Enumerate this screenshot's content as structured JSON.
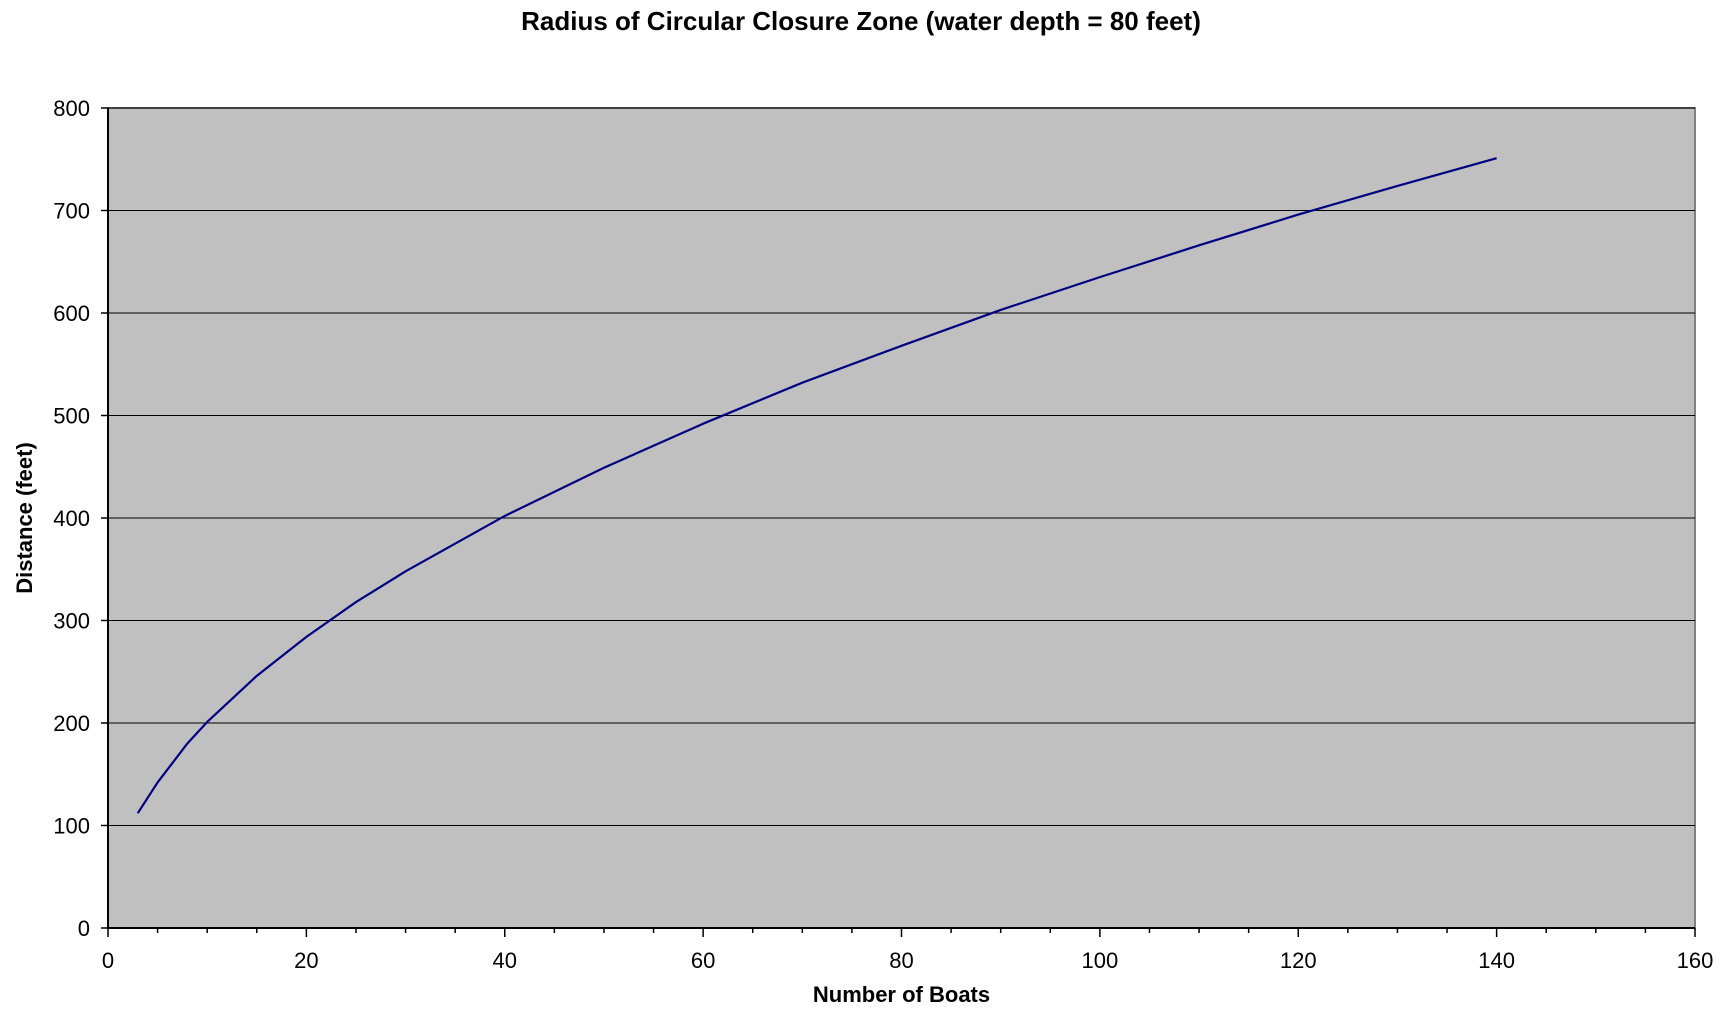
{
  "chart_data": {
    "type": "line",
    "title": "Radius of Circular Closure Zone (water depth = 80 feet)",
    "xlabel": "Number of Boats",
    "ylabel": "Distance (feet)",
    "xlim": [
      0,
      160
    ],
    "ylim": [
      0,
      800
    ],
    "x_ticks": [
      0,
      20,
      40,
      60,
      80,
      100,
      120,
      140,
      160
    ],
    "y_ticks": [
      0,
      100,
      200,
      300,
      400,
      500,
      600,
      700,
      800
    ],
    "x_tick_labels": [
      "0",
      "20",
      "40",
      "60",
      "80",
      "100",
      "120",
      "140",
      "160"
    ],
    "y_tick_labels": [
      "0",
      "100",
      "200",
      "300",
      "400",
      "500",
      "600",
      "700",
      "800"
    ],
    "x_minor_step": 5,
    "grid": "horizontal major gridlines",
    "legend": "none",
    "colors": {
      "plot_background": "#c0c0c0",
      "line": "#000080",
      "gridline": "#000000",
      "page_background": "#ffffff"
    },
    "series": [
      {
        "x": [
          3,
          5,
          8,
          10,
          15,
          20,
          25,
          30,
          40,
          50,
          60,
          70,
          80,
          90,
          100,
          110,
          120,
          130,
          140
        ],
        "y": [
          112,
          142,
          180,
          201,
          246,
          284,
          318,
          348,
          402,
          449,
          492,
          532,
          568,
          603,
          635,
          666,
          696,
          724,
          751
        ]
      }
    ]
  }
}
